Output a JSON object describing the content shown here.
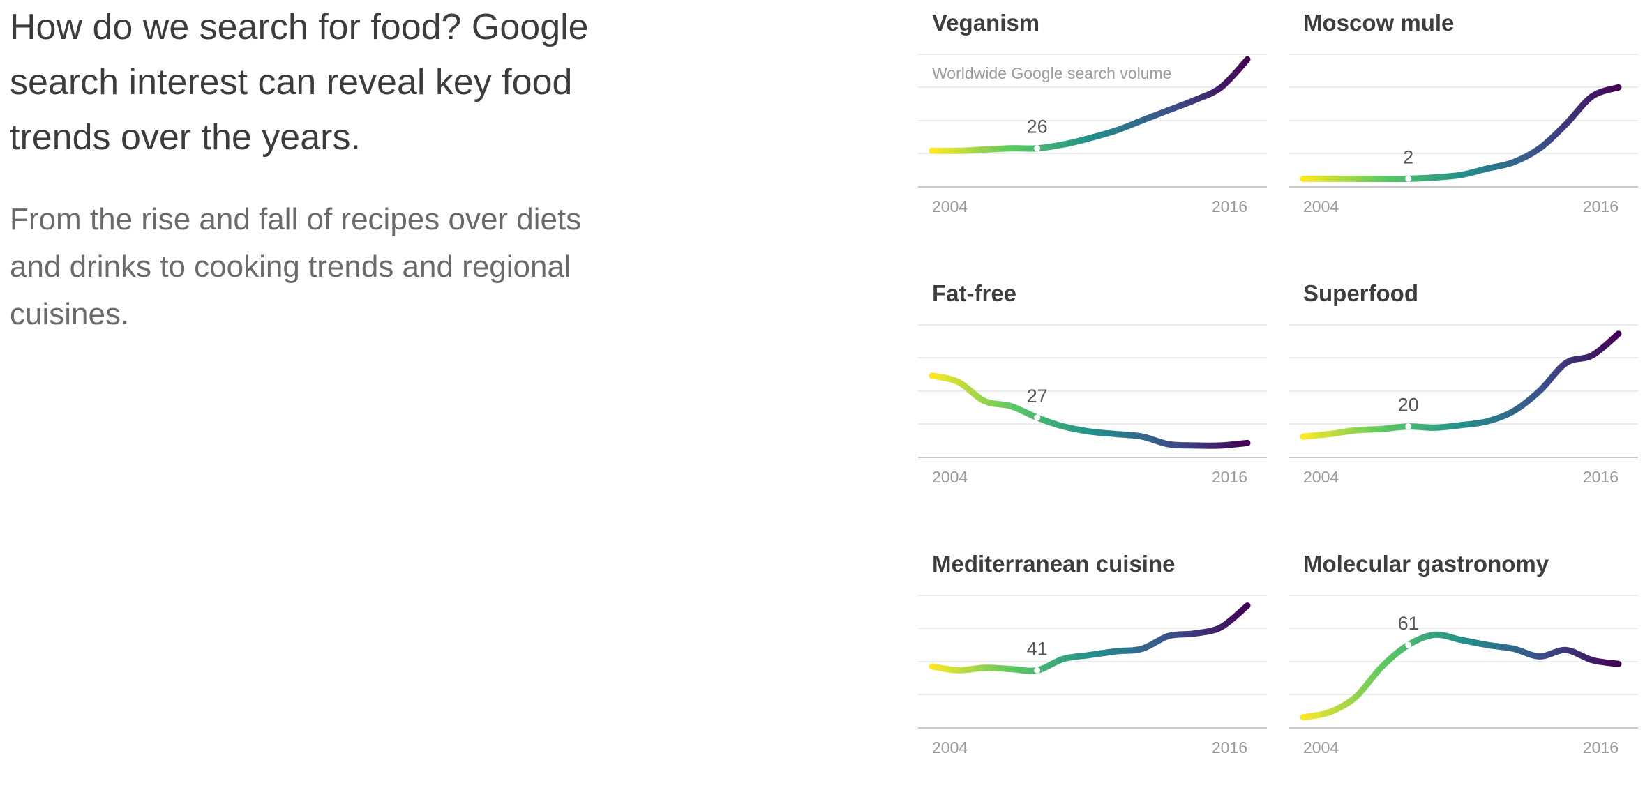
{
  "intro": {
    "headline": "How do we search for food? Google search interest can reveal key food trends over the years.",
    "subhead": "From the rise and fall of recipes over diets and drinks to cooking trends and regional cuisines."
  },
  "colors": {
    "gradient": [
      "#fde725",
      "#5ec962",
      "#21918c",
      "#3b528b",
      "#440154"
    ],
    "grid": "#e6e6e6",
    "axis": "#c8c8c8"
  },
  "chart_data": [
    {
      "type": "line",
      "title": "Veganism",
      "note": "Worldwide Google search volume",
      "x_start_label": "2004",
      "x_end_label": "2016",
      "ylim": [
        0,
        100
      ],
      "x": [
        2004,
        2005,
        2006,
        2007,
        2008,
        2009,
        2010,
        2011,
        2012,
        2013,
        2014,
        2015,
        2016
      ],
      "values": [
        24,
        24,
        25,
        26,
        26,
        29,
        34,
        40,
        48,
        56,
        64,
        74,
        96
      ],
      "highlight": {
        "x": 2008,
        "label": "26"
      }
    },
    {
      "type": "line",
      "title": "Moscow mule",
      "x_start_label": "2004",
      "x_end_label": "2016",
      "ylim": [
        0,
        100
      ],
      "x": [
        2004,
        2005,
        2006,
        2007,
        2008,
        2009,
        2010,
        2011,
        2012,
        2013,
        2014,
        2015,
        2016
      ],
      "values": [
        2,
        2,
        2,
        2,
        2,
        3,
        5,
        10,
        15,
        26,
        45,
        67,
        74
      ],
      "highlight": {
        "x": 2008,
        "label": "2"
      }
    },
    {
      "type": "line",
      "title": "Fat-free",
      "x_start_label": "2004",
      "x_end_label": "2016",
      "ylim": [
        0,
        100
      ],
      "x": [
        2004,
        2005,
        2006,
        2007,
        2008,
        2009,
        2010,
        2011,
        2012,
        2013,
        2014,
        2015,
        2016
      ],
      "values": [
        60,
        55,
        40,
        36,
        27,
        20,
        16,
        14,
        12,
        6,
        5,
        5,
        7
      ],
      "highlight": {
        "x": 2008,
        "label": "27"
      }
    },
    {
      "type": "line",
      "title": "Superfood",
      "x_start_label": "2004",
      "x_end_label": "2016",
      "ylim": [
        0,
        100
      ],
      "x": [
        2004,
        2005,
        2006,
        2007,
        2008,
        2009,
        2010,
        2011,
        2012,
        2013,
        2014,
        2015,
        2016
      ],
      "values": [
        12,
        14,
        17,
        18,
        20,
        19,
        21,
        24,
        32,
        48,
        70,
        76,
        93
      ],
      "highlight": {
        "x": 2008,
        "label": "20"
      }
    },
    {
      "type": "line",
      "title": "Mediterranean cuisine",
      "x_start_label": "2004",
      "x_end_label": "2016",
      "ylim": [
        0,
        100
      ],
      "x": [
        2004,
        2005,
        2006,
        2007,
        2008,
        2009,
        2010,
        2011,
        2012,
        2013,
        2014,
        2015,
        2016
      ],
      "values": [
        44,
        41,
        43,
        42,
        41,
        50,
        53,
        56,
        58,
        68,
        70,
        75,
        92
      ],
      "highlight": {
        "x": 2008,
        "label": "41"
      }
    },
    {
      "type": "line",
      "title": "Molecular gastronomy",
      "x_start_label": "2004",
      "x_end_label": "2016",
      "ylim": [
        0,
        100
      ],
      "x": [
        2004,
        2005,
        2006,
        2007,
        2008,
        2009,
        2010,
        2011,
        2012,
        2013,
        2014,
        2015,
        2016
      ],
      "values": [
        4,
        8,
        20,
        44,
        61,
        69,
        65,
        61,
        58,
        52,
        57,
        49,
        46
      ],
      "highlight": {
        "x": 2008,
        "label": "61"
      }
    }
  ]
}
